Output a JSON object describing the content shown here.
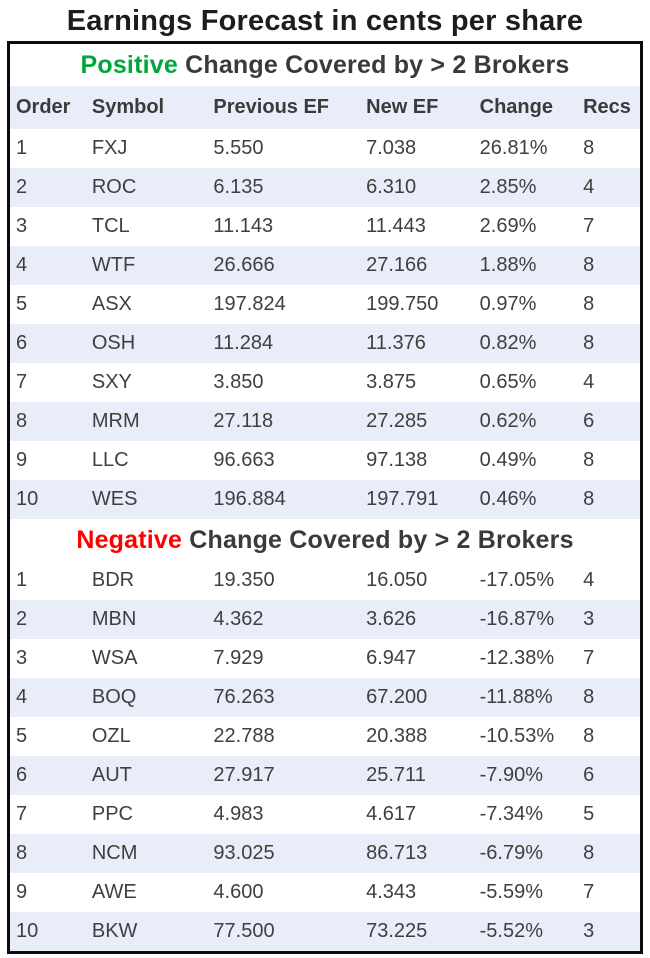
{
  "title": "Earnings Forecast in cents per share",
  "colors": {
    "stripe": "#E9EDF9",
    "positive": "#00A63B",
    "negative": "#FF0000",
    "border": "#0B0B0B",
    "text": "#3F3F3F"
  },
  "chart_data": {
    "type": "table",
    "title": "Earnings Forecast in cents per share",
    "columns": [
      "Order",
      "Symbol",
      "Previous EF",
      "New EF",
      "Change",
      "Recs"
    ],
    "column_keys": [
      "order",
      "symbol",
      "previous-ef",
      "new-ef",
      "change",
      "recs"
    ],
    "sections": [
      {
        "id": "positive",
        "heading": {
          "highlight": "Positive",
          "rest": " Change Covered by > 2 Brokers"
        },
        "rows": [
          [
            "1",
            "FXJ",
            "5.550",
            "7.038",
            "26.81%",
            "8"
          ],
          [
            "2",
            "ROC",
            "6.135",
            "6.310",
            "2.85%",
            "4"
          ],
          [
            "3",
            "TCL",
            "11.143",
            "11.443",
            "2.69%",
            "7"
          ],
          [
            "4",
            "WTF",
            "26.666",
            "27.166",
            "1.88%",
            "8"
          ],
          [
            "5",
            "ASX",
            "197.824",
            "199.750",
            "0.97%",
            "8"
          ],
          [
            "6",
            "OSH",
            "11.284",
            "11.376",
            "0.82%",
            "8"
          ],
          [
            "7",
            "SXY",
            "3.850",
            "3.875",
            "0.65%",
            "4"
          ],
          [
            "8",
            "MRM",
            "27.118",
            "27.285",
            "0.62%",
            "6"
          ],
          [
            "9",
            "LLC",
            "96.663",
            "97.138",
            "0.49%",
            "8"
          ],
          [
            "10",
            "WES",
            "196.884",
            "197.791",
            "0.46%",
            "8"
          ]
        ]
      },
      {
        "id": "negative",
        "heading": {
          "highlight": "Negative",
          "rest": " Change Covered by > 2 Brokers"
        },
        "rows": [
          [
            "1",
            "BDR",
            "19.350",
            "16.050",
            "-17.05%",
            "4"
          ],
          [
            "2",
            "MBN",
            "4.362",
            "3.626",
            "-16.87%",
            "3"
          ],
          [
            "3",
            "WSA",
            "7.929",
            "6.947",
            "-12.38%",
            "7"
          ],
          [
            "4",
            "BOQ",
            "76.263",
            "67.200",
            "-11.88%",
            "8"
          ],
          [
            "5",
            "OZL",
            "22.788",
            "20.388",
            "-10.53%",
            "8"
          ],
          [
            "6",
            "AUT",
            "27.917",
            "25.711",
            "-7.90%",
            "6"
          ],
          [
            "7",
            "PPC",
            "4.983",
            "4.617",
            "-7.34%",
            "5"
          ],
          [
            "8",
            "NCM",
            "93.025",
            "86.713",
            "-6.79%",
            "8"
          ],
          [
            "9",
            "AWE",
            "4.600",
            "4.343",
            "-5.59%",
            "7"
          ],
          [
            "10",
            "BKW",
            "77.500",
            "73.225",
            "-5.52%",
            "3"
          ]
        ]
      }
    ]
  }
}
